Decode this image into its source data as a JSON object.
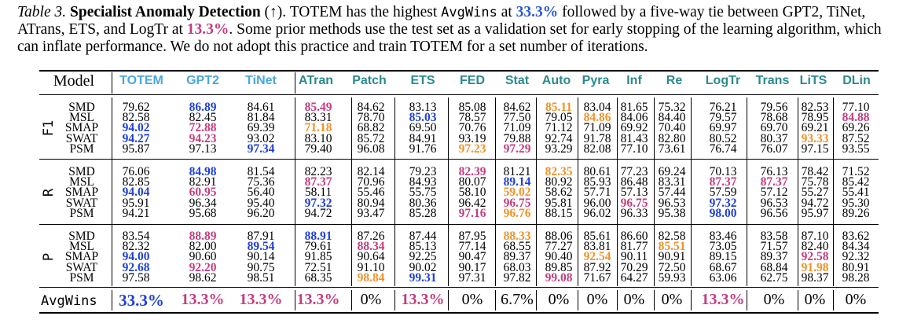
{
  "caption": {
    "table_num": "Table 3.",
    "title": "Specialist Anomaly Detection",
    "arrow": "(↑).",
    "t1": " TOTEM has the highest ",
    "metric_name": "AvgWins",
    "t2": " at ",
    "v1": "33.3%",
    "t3": " followed by a five-way tie between GPT2, TiNet, ATrans, ETS, and LogTr at ",
    "v2": "13.3%",
    "t4": ". Some prior methods use the test set as a validation set for early stopping of the learning algorithm, which can inflate performance. We do not adopt this practice and train TOTEM for a set number of iterations."
  },
  "table": {
    "model_header": "Model",
    "columns": [
      "TOTEM",
      "GPT2",
      "TiNet",
      "ATran",
      "Patch",
      "ETS",
      "FED",
      "Stat",
      "Auto",
      "Pyra",
      "Inf",
      "Re",
      "LogTr",
      "Trans",
      "LiTS",
      "DLin"
    ],
    "datasets": [
      "SMD",
      "MSL",
      "SMAP",
      "SWAT",
      "PSM"
    ],
    "blocks": [
      {
        "metric": "F1",
        "rows": [
          [
            "79.62",
            "86.89",
            "84.61",
            "85.49",
            "84.62",
            "83.13",
            "85.08",
            "84.62",
            "85.11",
            "83.04",
            "81.65",
            "75.32",
            "76.21",
            "79.56",
            "82.53",
            "77.10"
          ],
          [
            "82.58",
            "82.45",
            "81.84",
            "83.31",
            "78.70",
            "85.03",
            "78.57",
            "77.50",
            "79.05",
            "84.86",
            "84.06",
            "84.40",
            "79.57",
            "78.68",
            "78.95",
            "84.88"
          ],
          [
            "94.02",
            "72.88",
            "69.39",
            "71.18",
            "68.82",
            "69.50",
            "70.76",
            "71.09",
            "71.12",
            "71.09",
            "69.92",
            "70.40",
            "69.97",
            "69.70",
            "69.21",
            "69.26"
          ],
          [
            "94.27",
            "94.23",
            "93.02",
            "83.10",
            "85.72",
            "84.91",
            "93.19",
            "79.88",
            "92.74",
            "91.78",
            "81.43",
            "82.80",
            "80.52",
            "80.37",
            "93.33",
            "87.52"
          ],
          [
            "95.87",
            "97.13",
            "97.34",
            "79.40",
            "96.08",
            "91.76",
            "97.23",
            "97.29",
            "93.29",
            "82.08",
            "77.10",
            "73.61",
            "76.74",
            "76.07",
            "97.15",
            "93.55"
          ]
        ],
        "colors": [
          [
            "",
            "b",
            "",
            "p",
            "",
            "",
            "",
            "",
            "o",
            "",
            "",
            "",
            "",
            "",
            "",
            ""
          ],
          [
            "",
            "",
            "",
            "",
            "",
            "b",
            "",
            "",
            "",
            "o",
            "",
            "",
            "",
            "",
            "",
            "p"
          ],
          [
            "b",
            "p",
            "",
            "o",
            "",
            "",
            "",
            "",
            "",
            "",
            "",
            "",
            "",
            "",
            "",
            ""
          ],
          [
            "b",
            "p",
            "",
            "",
            "",
            "",
            "",
            "",
            "",
            "",
            "",
            "",
            "",
            "",
            "o",
            ""
          ],
          [
            "",
            "",
            "b",
            "",
            "",
            "",
            "o",
            "p",
            "",
            "",
            "",
            "",
            "",
            "",
            "",
            ""
          ]
        ]
      },
      {
        "metric": "R",
        "rows": [
          [
            "76.06",
            "84.98",
            "81.54",
            "82.23",
            "82.14",
            "79.23",
            "82.39",
            "81.21",
            "82.35",
            "80.61",
            "77.23",
            "69.24",
            "70.13",
            "76.13",
            "78.42",
            "71.52"
          ],
          [
            "82.85",
            "82.91",
            "75.36",
            "87.37",
            "70.96",
            "84.93",
            "80.07",
            "89.14",
            "80.92",
            "85.93",
            "86.48",
            "83.31",
            "87.37",
            "87.37",
            "75.78",
            "85.42"
          ],
          [
            "94.04",
            "60.95",
            "56.40",
            "58.11",
            "55.46",
            "55.75",
            "58.10",
            "59.02",
            "58.62",
            "57.71",
            "57.13",
            "57.44",
            "57.59",
            "57.12",
            "55.27",
            "55.41"
          ],
          [
            "95.91",
            "96.34",
            "95.40",
            "97.32",
            "80.94",
            "80.36",
            "96.42",
            "96.75",
            "95.81",
            "96.00",
            "96.75",
            "96.53",
            "97.32",
            "96.53",
            "94.72",
            "95.30"
          ],
          [
            "94.21",
            "95.68",
            "96.20",
            "94.72",
            "93.47",
            "85.28",
            "97.16",
            "96.76",
            "88.15",
            "96.02",
            "96.33",
            "95.38",
            "98.00",
            "96.56",
            "95.97",
            "89.26"
          ]
        ],
        "colors": [
          [
            "",
            "b",
            "",
            "",
            "",
            "",
            "p",
            "",
            "o",
            "",
            "",
            "",
            "",
            "",
            "",
            ""
          ],
          [
            "",
            "",
            "",
            "p",
            "",
            "",
            "",
            "b",
            "",
            "",
            "",
            "",
            "p",
            "p",
            "",
            ""
          ],
          [
            "b",
            "p",
            "",
            "",
            "",
            "",
            "",
            "o",
            "",
            "",
            "",
            "",
            "",
            "",
            "",
            ""
          ],
          [
            "",
            "",
            "",
            "b",
            "",
            "",
            "",
            "p",
            "",
            "",
            "p",
            "",
            "b",
            "",
            "",
            ""
          ],
          [
            "",
            "",
            "",
            "",
            "",
            "",
            "p",
            "o",
            "",
            "",
            "",
            "",
            "b",
            "",
            "",
            ""
          ]
        ]
      },
      {
        "metric": "P",
        "rows": [
          [
            "83.54",
            "88.89",
            "87.91",
            "88.91",
            "87.26",
            "87.44",
            "87.95",
            "88.33",
            "88.06",
            "85.61",
            "86.60",
            "82.58",
            "83.46",
            "83.58",
            "87.10",
            "83.62"
          ],
          [
            "82.32",
            "82.00",
            "89.54",
            "79.61",
            "88.34",
            "85.13",
            "77.14",
            "68.55",
            "77.27",
            "83.81",
            "81.77",
            "85.51",
            "73.05",
            "71.57",
            "82.40",
            "84.34"
          ],
          [
            "94.00",
            "90.60",
            "90.14",
            "91.85",
            "90.64",
            "92.25",
            "90.47",
            "89.37",
            "90.40",
            "92.54",
            "90.11",
            "90.91",
            "89.15",
            "89.37",
            "92.58",
            "92.32"
          ],
          [
            "92.68",
            "92.20",
            "90.75",
            "72.51",
            "91.10",
            "90.02",
            "90.17",
            "68.03",
            "89.85",
            "87.92",
            "70.29",
            "72.50",
            "68.67",
            "68.84",
            "91.98",
            "80.91"
          ],
          [
            "97.58",
            "98.62",
            "98.51",
            "68.35",
            "98.84",
            "99.31",
            "97.31",
            "97.82",
            "99.08",
            "71.67",
            "64.27",
            "59.93",
            "63.06",
            "62.75",
            "98.37",
            "98.28"
          ]
        ],
        "colors": [
          [
            "",
            "p",
            "",
            "b",
            "",
            "",
            "",
            "o",
            "",
            "",
            "",
            "",
            "",
            "",
            "",
            ""
          ],
          [
            "",
            "",
            "b",
            "",
            "p",
            "",
            "",
            "",
            "",
            "",
            "",
            "o",
            "",
            "",
            "",
            ""
          ],
          [
            "b",
            "",
            "",
            "",
            "",
            "",
            "",
            "",
            "",
            "o",
            "",
            "",
            "",
            "",
            "p",
            ""
          ],
          [
            "b",
            "p",
            "",
            "",
            "",
            "",
            "",
            "",
            "",
            "",
            "",
            "",
            "",
            "",
            "o",
            ""
          ],
          [
            "",
            "",
            "",
            "",
            "o",
            "b",
            "",
            "",
            "p",
            "",
            "",
            "",
            "",
            "",
            "",
            ""
          ]
        ]
      }
    ],
    "avgwins_label": "AvgWins",
    "avgwins": [
      "33.3%",
      "13.3%",
      "13.3%",
      "13.3%",
      "0%",
      "13.3%",
      "0%",
      "6.7%",
      "0%",
      "0%",
      "0%",
      "0%",
      "13.3%",
      "0%",
      "0%",
      "0%"
    ],
    "avgwins_colors": [
      "b",
      "p",
      "p",
      "p",
      "",
      "p",
      "",
      "",
      "",
      "",
      "",
      "",
      "p",
      "",
      "",
      ""
    ]
  },
  "colors": {
    "blue": "#1f3fd8",
    "pink": "#c43c7f",
    "orange": "#f0922b",
    "header_teal": "#2a8a8a",
    "header_light_blue": "#4aa6dc"
  }
}
